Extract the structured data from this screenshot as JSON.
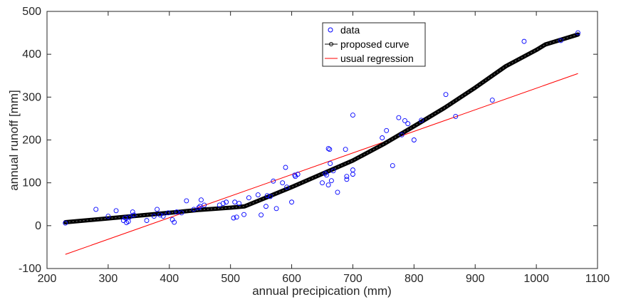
{
  "chart_data": {
    "type": "scatter",
    "xlabel": "annual precipication (mm)",
    "ylabel": "annual runoff [mm]",
    "xlim": [
      200,
      1100
    ],
    "ylim": [
      -100,
      500
    ],
    "xticks": [
      200,
      300,
      400,
      500,
      600,
      700,
      800,
      900,
      1000,
      1100
    ],
    "yticks": [
      -100,
      0,
      100,
      200,
      300,
      400,
      500
    ],
    "xtick_labels": [
      "200",
      "300",
      "400",
      "500",
      "600",
      "700",
      "800",
      "900",
      "1000",
      "1100"
    ],
    "ytick_labels": [
      "-100",
      "0",
      "100",
      "200",
      "300",
      "400",
      "500"
    ],
    "grid": false,
    "legend_position": "top-center",
    "series": [
      {
        "name": "data",
        "kind": "markers",
        "color": "#0000ff",
        "points": [
          [
            230,
            6
          ],
          [
            280,
            38
          ],
          [
            300,
            22
          ],
          [
            313,
            35
          ],
          [
            325,
            12
          ],
          [
            328,
            18
          ],
          [
            330,
            7
          ],
          [
            333,
            10
          ],
          [
            335,
            20
          ],
          [
            340,
            32
          ],
          [
            342,
            25
          ],
          [
            363,
            12
          ],
          [
            375,
            22
          ],
          [
            380,
            38
          ],
          [
            385,
            25
          ],
          [
            390,
            22
          ],
          [
            398,
            30
          ],
          [
            405,
            14
          ],
          [
            408,
            8
          ],
          [
            412,
            32
          ],
          [
            420,
            30
          ],
          [
            428,
            58
          ],
          [
            440,
            38
          ],
          [
            448,
            42
          ],
          [
            450,
            45
          ],
          [
            452,
            60
          ],
          [
            457,
            48
          ],
          [
            482,
            48
          ],
          [
            488,
            52
          ],
          [
            493,
            55
          ],
          [
            505,
            18
          ],
          [
            507,
            55
          ],
          [
            510,
            20
          ],
          [
            514,
            52
          ],
          [
            522,
            26
          ],
          [
            530,
            65
          ],
          [
            545,
            72
          ],
          [
            550,
            25
          ],
          [
            558,
            45
          ],
          [
            560,
            70
          ],
          [
            565,
            68
          ],
          [
            570,
            104
          ],
          [
            575,
            40
          ],
          [
            585,
            100
          ],
          [
            590,
            136
          ],
          [
            592,
            90
          ],
          [
            600,
            55
          ],
          [
            605,
            118
          ],
          [
            606,
            115
          ],
          [
            610,
            120
          ],
          [
            650,
            100
          ],
          [
            655,
            122
          ],
          [
            657,
            118
          ],
          [
            660,
            95
          ],
          [
            660,
            180
          ],
          [
            662,
            178
          ],
          [
            663,
            145
          ],
          [
            665,
            105
          ],
          [
            668,
            128
          ],
          [
            675,
            78
          ],
          [
            688,
            178
          ],
          [
            690,
            115
          ],
          [
            690,
            108
          ],
          [
            700,
            130
          ],
          [
            700,
            120
          ],
          [
            700,
            258
          ],
          [
            765,
            140
          ],
          [
            748,
            205
          ],
          [
            755,
            222
          ],
          [
            775,
            252
          ],
          [
            780,
            212
          ],
          [
            785,
            245
          ],
          [
            790,
            238
          ],
          [
            800,
            200
          ],
          [
            812,
            246
          ],
          [
            852,
            306
          ],
          [
            868,
            255
          ],
          [
            928,
            293
          ],
          [
            980,
            430
          ],
          [
            1040,
            432
          ],
          [
            1068,
            450
          ]
        ]
      },
      {
        "name": "proposed curve",
        "kind": "line-with-markers",
        "color": "#000000",
        "points": [
          [
            230,
            8
          ],
          [
            300,
            17
          ],
          [
            400,
            30
          ],
          [
            450,
            37
          ],
          [
            500,
            42
          ],
          [
            523,
            45
          ],
          [
            600,
            90
          ],
          [
            700,
            152
          ],
          [
            750,
            190
          ],
          [
            800,
            232
          ],
          [
            850,
            275
          ],
          [
            900,
            322
          ],
          [
            950,
            372
          ],
          [
            1000,
            410
          ],
          [
            1015,
            423
          ],
          [
            1068,
            446
          ]
        ]
      },
      {
        "name": "usual regression",
        "kind": "line",
        "color": "#ff0000",
        "points": [
          [
            230,
            -67
          ],
          [
            1068,
            355
          ]
        ]
      }
    ]
  }
}
